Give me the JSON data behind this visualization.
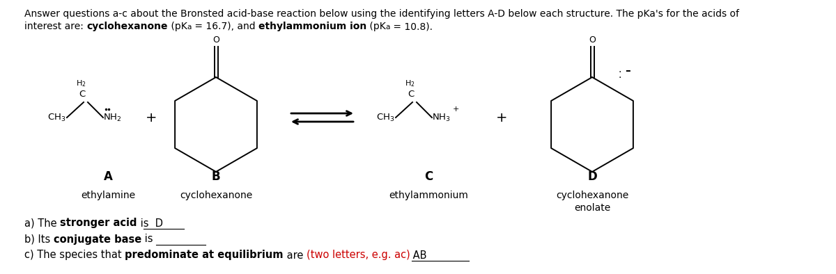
{
  "bg_color": "#ffffff",
  "title_line1": "Answer questions a-c about the Bronsted acid-base reaction below using the identifying letters A-D below each structure. The pKa's for the acids of",
  "title_line2_parts": [
    [
      "interest are: ",
      false,
      "black"
    ],
    [
      "cyclohexanone",
      true,
      "black"
    ],
    [
      " (pK",
      false,
      "black"
    ],
    [
      "a",
      false,
      "black"
    ],
    [
      " = 16.7), and ",
      false,
      "black"
    ],
    [
      "ethylammonium ion",
      true,
      "black"
    ],
    [
      " (pK",
      false,
      "black"
    ],
    [
      "a",
      false,
      "black"
    ],
    [
      " = 10.8).",
      false,
      "black"
    ]
  ],
  "label_A": "A",
  "label_B": "B",
  "label_C": "C",
  "label_D": "D",
  "name_A": "ethylamine",
  "name_B": "cyclohexanone",
  "name_C": "ethylammonium",
  "name_D1": "cyclohexanone",
  "name_D2": "enolate",
  "qa_parts": [
    [
      [
        "a) The ",
        false,
        "black"
      ],
      [
        "stronger acid",
        true,
        "black"
      ],
      [
        " is  D",
        false,
        "black"
      ]
    ],
    [
      [
        "b) Its ",
        false,
        "black"
      ],
      [
        "conjugate base",
        true,
        "black"
      ],
      [
        " is",
        false,
        "black"
      ]
    ],
    [
      [
        "c) The species that ",
        false,
        "black"
      ],
      [
        "predominate at equilibrium",
        true,
        "black"
      ],
      [
        " are ",
        false,
        "black"
      ],
      [
        "(two letters, e.g. ac)",
        false,
        "#cc0000"
      ],
      [
        " AB",
        false,
        "black"
      ]
    ]
  ],
  "underline_a": [
    0.148,
    0.22
  ],
  "underline_b": [
    0.148,
    0.24
  ],
  "underline_c": [
    0.46,
    0.59
  ]
}
